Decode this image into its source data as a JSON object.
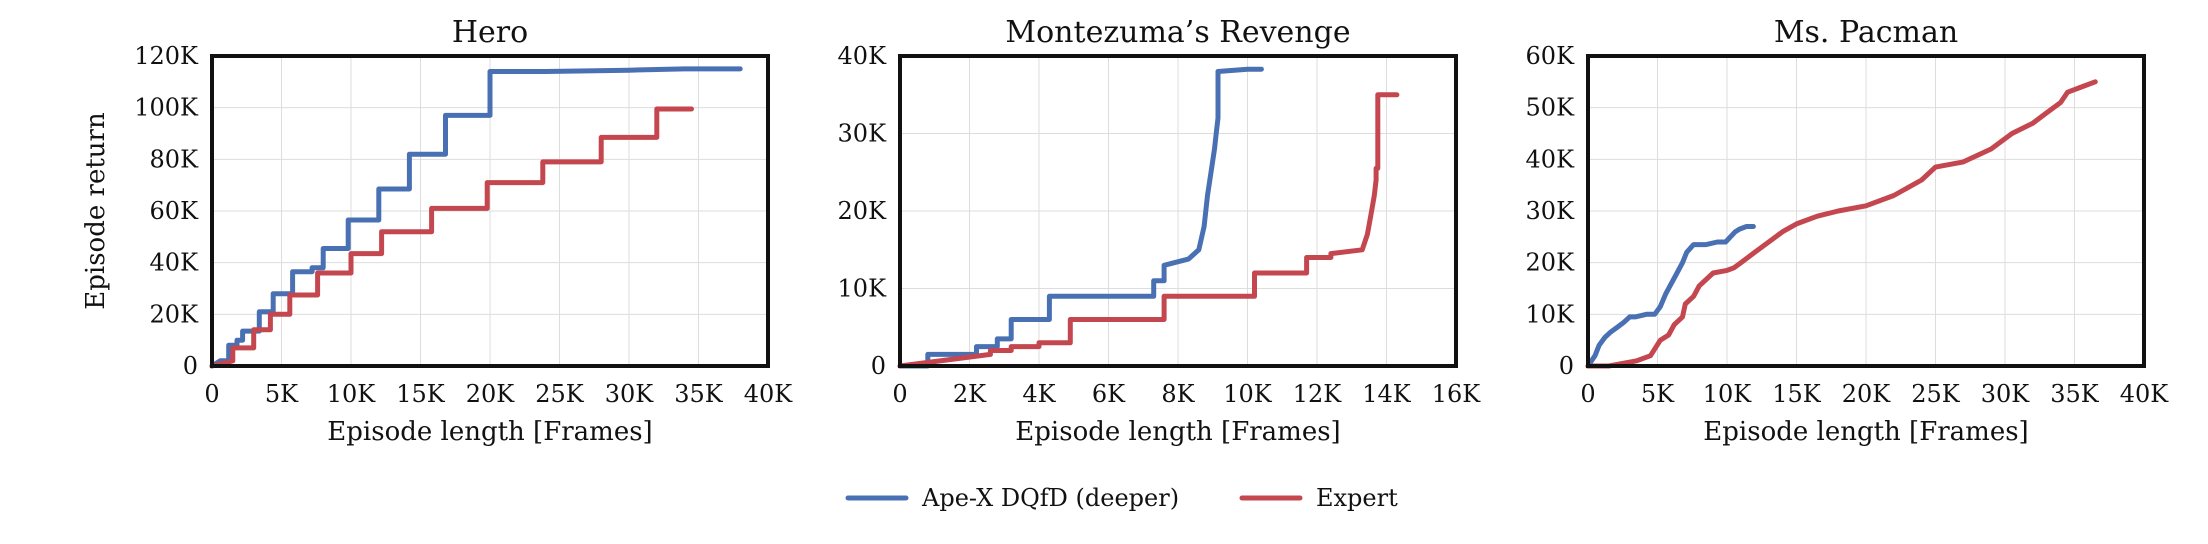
{
  "figure": {
    "legend": [
      {
        "name": "Ape-X DQfD (deeper)",
        "color": "#4a70b4"
      },
      {
        "name": "Expert",
        "color": "#c4474f"
      }
    ],
    "legend_placement": "bottom-center"
  },
  "chart_data": [
    {
      "type": "line",
      "title": "Hero",
      "xlabel": "Episode length [Frames]",
      "ylabel": "Episode return",
      "xlim": [
        0,
        40000
      ],
      "ylim": [
        0,
        120000
      ],
      "xticks": [
        0,
        5000,
        10000,
        15000,
        20000,
        25000,
        30000,
        35000,
        40000
      ],
      "xtick_labels": [
        "0",
        "5K",
        "10K",
        "15K",
        "20K",
        "25K",
        "30K",
        "35K",
        "40K"
      ],
      "yticks": [
        0,
        20000,
        40000,
        60000,
        80000,
        100000,
        120000
      ],
      "ytick_labels": [
        "0",
        "20K",
        "40K",
        "60K",
        "80K",
        "100K",
        "120K"
      ],
      "grid": true,
      "series": [
        {
          "name": "Ape-X DQfD (deeper)",
          "color": "#4a70b4",
          "x": [
            0,
            600,
            1200,
            1200,
            1800,
            1800,
            2200,
            2200,
            3400,
            3400,
            4400,
            4400,
            5800,
            5800,
            7200,
            7200,
            8000,
            8000,
            9800,
            9800,
            12000,
            12000,
            14200,
            14200,
            16800,
            16800,
            20000,
            20000,
            24000,
            30000,
            34000,
            38000
          ],
          "y": [
            0,
            2000,
            2000,
            8000,
            8000,
            10000,
            10000,
            13500,
            13500,
            21000,
            21000,
            28000,
            28000,
            36500,
            36500,
            38000,
            38000,
            45500,
            45500,
            56500,
            56500,
            68500,
            68500,
            82000,
            82000,
            97000,
            97000,
            114000,
            114000,
            114500,
            115000,
            115000
          ]
        },
        {
          "name": "Expert",
          "color": "#c4474f",
          "x": [
            0,
            1500,
            1500,
            3000,
            3000,
            4200,
            4200,
            5600,
            5600,
            7600,
            7600,
            10000,
            10000,
            12200,
            12200,
            15800,
            15800,
            19800,
            19800,
            23800,
            23800,
            28000,
            28000,
            32000,
            32000,
            34500
          ],
          "y": [
            0,
            2000,
            7000,
            7000,
            14000,
            14000,
            20000,
            20000,
            27500,
            27500,
            36000,
            36000,
            43500,
            43500,
            52000,
            52000,
            61000,
            61000,
            71000,
            71000,
            79000,
            79000,
            88500,
            88500,
            99500,
            99500
          ]
        }
      ]
    },
    {
      "type": "line",
      "title": "Montezuma’s Revenge",
      "xlabel": "Episode length [Frames]",
      "ylabel": "",
      "xlim": [
        0,
        16000
      ],
      "ylim": [
        0,
        40000
      ],
      "xticks": [
        0,
        2000,
        4000,
        6000,
        8000,
        10000,
        12000,
        14000,
        16000
      ],
      "xtick_labels": [
        "0",
        "2K",
        "4K",
        "6K",
        "8K",
        "10K",
        "12K",
        "14K",
        "16K"
      ],
      "yticks": [
        0,
        10000,
        20000,
        30000,
        40000
      ],
      "ytick_labels": [
        "0",
        "10K",
        "20K",
        "30K",
        "40K"
      ],
      "grid": true,
      "series": [
        {
          "name": "Ape-X DQfD (deeper)",
          "color": "#4a70b4",
          "x": [
            0,
            800,
            800,
            2200,
            2200,
            2800,
            2800,
            3200,
            3200,
            4300,
            4300,
            7300,
            7300,
            7600,
            7600,
            8300,
            8600,
            8750,
            8850,
            8950,
            9050,
            9100,
            9150,
            9150,
            10000,
            10400
          ],
          "y": [
            0,
            0,
            1500,
            1500,
            2500,
            2500,
            3500,
            3500,
            6000,
            6000,
            9000,
            9000,
            11000,
            11000,
            13000,
            13800,
            15000,
            18000,
            22000,
            25000,
            28000,
            30000,
            32000,
            38000,
            38300,
            38300
          ]
        },
        {
          "name": "Expert",
          "color": "#c4474f",
          "x": [
            0,
            2600,
            2600,
            3200,
            3200,
            4000,
            4000,
            4900,
            4900,
            7600,
            7600,
            10200,
            10200,
            11700,
            11700,
            12400,
            12400,
            13300,
            13450,
            13550,
            13650,
            13700,
            13700,
            13750,
            13750,
            14300
          ],
          "y": [
            0,
            1500,
            2000,
            2000,
            2500,
            2500,
            3000,
            3000,
            6000,
            6000,
            9000,
            9000,
            12000,
            12000,
            14000,
            14000,
            14500,
            15000,
            17000,
            19500,
            22000,
            24000,
            25500,
            25500,
            35000,
            35000
          ]
        }
      ]
    },
    {
      "type": "line",
      "title": "Ms. Pacman",
      "xlabel": "Episode length [Frames]",
      "ylabel": "",
      "xlim": [
        0,
        40000
      ],
      "ylim": [
        0,
        60000
      ],
      "xticks": [
        0,
        5000,
        10000,
        15000,
        20000,
        25000,
        30000,
        35000,
        40000
      ],
      "xtick_labels": [
        "0",
        "5K",
        "10K",
        "15K",
        "20K",
        "25K",
        "30K",
        "35K",
        "40K"
      ],
      "yticks": [
        0,
        10000,
        20000,
        30000,
        40000,
        50000,
        60000
      ],
      "ytick_labels": [
        "0",
        "10K",
        "20K",
        "30K",
        "40K",
        "50K",
        "60K"
      ],
      "grid": true,
      "series": [
        {
          "name": "Ape-X DQfD (deeper)",
          "color": "#4a70b4",
          "x": [
            0,
            500,
            800,
            1200,
            1600,
            2100,
            2600,
            3000,
            3400,
            4200,
            4800,
            5200,
            5600,
            6000,
            6400,
            6800,
            7100,
            7600,
            8500,
            9300,
            9900,
            10600,
            10900,
            11400,
            11900
          ],
          "y": [
            0,
            2000,
            4000,
            5500,
            6500,
            7500,
            8500,
            9500,
            9500,
            10000,
            10000,
            11500,
            14000,
            16000,
            18000,
            20000,
            22000,
            23500,
            23500,
            24000,
            24000,
            26000,
            26500,
            27000,
            27000
          ]
        },
        {
          "name": "Expert",
          "color": "#c4474f",
          "x": [
            0,
            1500,
            3500,
            4500,
            5200,
            5800,
            6200,
            6800,
            7000,
            7600,
            8000,
            9000,
            10000,
            10500,
            11000,
            12000,
            13000,
            14000,
            15000,
            16500,
            18000,
            20000,
            22000,
            24000,
            25000,
            27000,
            29000,
            30500,
            32000,
            33000,
            34000,
            34500,
            35500,
            36500
          ],
          "y": [
            0,
            0,
            1000,
            2000,
            5000,
            6000,
            8000,
            9500,
            12000,
            13500,
            15500,
            18000,
            18500,
            19000,
            20000,
            22000,
            24000,
            26000,
            27500,
            29000,
            30000,
            31000,
            33000,
            36000,
            38500,
            39500,
            42000,
            45000,
            47000,
            49000,
            51000,
            53000,
            54000,
            55000
          ]
        }
      ]
    }
  ]
}
